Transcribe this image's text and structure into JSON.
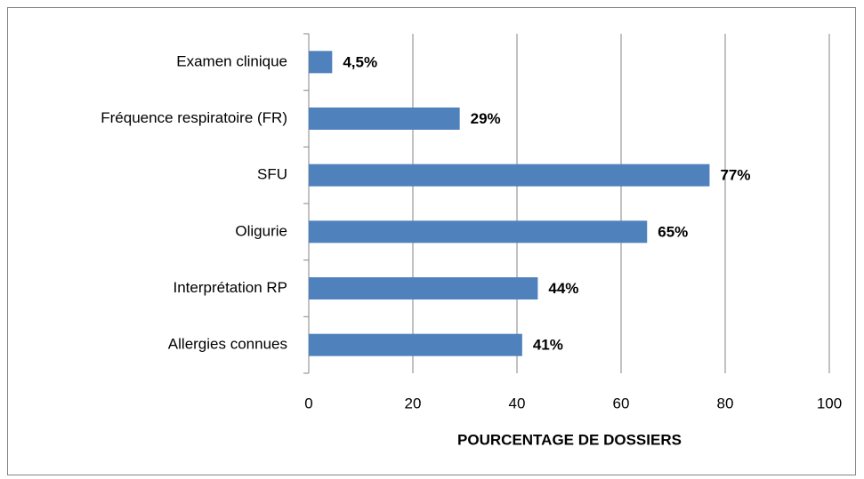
{
  "chart_data": {
    "type": "bar",
    "orientation": "horizontal",
    "x_label": "POURCENTAGE DE DOSSIERS",
    "categories": [
      "Examen clinique",
      "Fréquence respiratoire (FR)",
      "SFU",
      "Oligurie",
      "Interprétation RP",
      "Allergies connues"
    ],
    "values": [
      4.5,
      29,
      77,
      65,
      44,
      41
    ],
    "value_labels": [
      "4,5%",
      "29%",
      "77%",
      "65%",
      "44%",
      "41%"
    ],
    "color": "#4f81bd",
    "xlim": [
      0,
      100
    ],
    "xticks": [
      0,
      20,
      40,
      60,
      80,
      100
    ],
    "grid": true
  }
}
